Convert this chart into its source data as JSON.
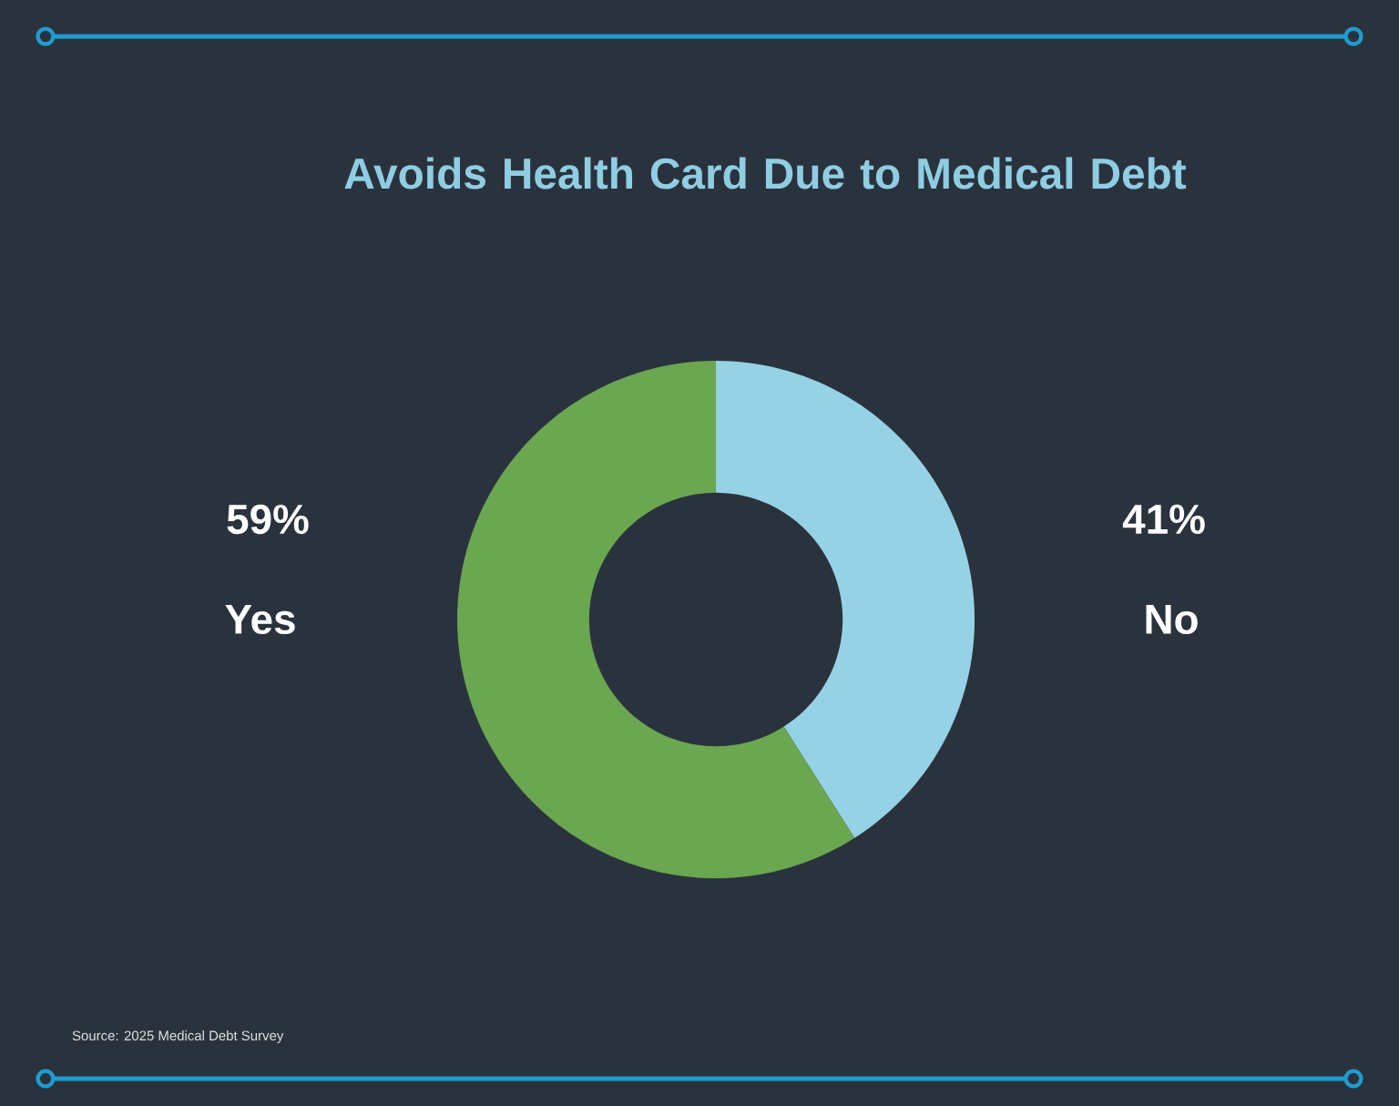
{
  "chart_data": {
    "type": "donut",
    "title": "Avoids Health Card Due to Medical Debt",
    "categories": [
      "No",
      "Yes"
    ],
    "values": [
      41,
      59
    ],
    "colors": [
      "#96d2e6",
      "#6aa750"
    ],
    "value_labels": [
      "41%",
      "59%"
    ],
    "annotations": [
      "Source: 2025 Medical Debt Survey"
    ]
  }
}
